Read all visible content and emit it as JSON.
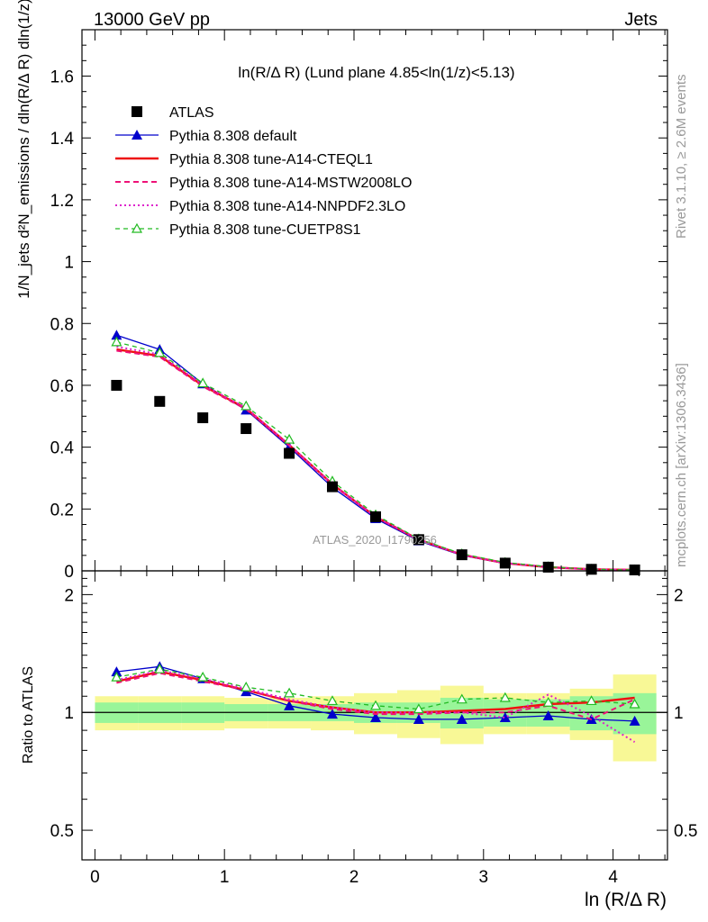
{
  "header": {
    "energy": "13000 GeV pp",
    "process": "Jets"
  },
  "side_text": {
    "rivet": "Rivet 3.1.10, ≥ 2.6M events",
    "mcplots": "mcplots.cern.ch [arXiv:1306.3436]"
  },
  "watermark": "ATLAS_2020_I1790256",
  "colors": {
    "atlas": "#000000",
    "default": "#0000cc",
    "cteql1": "#ee1111",
    "mstw": "#ee1177",
    "nnpdf": "#dd22cc",
    "cuetp8s1": "#22bb22",
    "band_inner": "#99f599",
    "band_outer": "#f8f896"
  },
  "chart_data": [
    {
      "type": "scatter",
      "panel": "main",
      "title": "ln(R/Δ R) (Lund plane 4.85<ln(1/z)<5.13)",
      "ylabel": "1/N_jets d²N_emissions / dln(R/Δ R) dln(1/z)",
      "xlim": [
        -0.1,
        4.42
      ],
      "ylim": [
        0,
        1.75
      ],
      "yticks": [
        0,
        0.2,
        0.4,
        0.6,
        0.8,
        1,
        1.2,
        1.4,
        1.6
      ],
      "x": [
        0.167,
        0.5,
        0.833,
        1.167,
        1.5,
        1.833,
        2.167,
        2.5,
        2.833,
        3.167,
        3.5,
        3.833,
        4.167
      ],
      "legend": {
        "placement": "top-left"
      },
      "series": [
        {
          "name": "ATLAS",
          "key": "atlas",
          "style": "square",
          "values": [
            0.6,
            0.548,
            0.495,
            0.46,
            0.38,
            0.272,
            0.175,
            0.101,
            0.052,
            0.025,
            0.012,
            0.005,
            0.003
          ]
        },
        {
          "name": "Pythia 8.308 default",
          "key": "default",
          "style": "tri-solid",
          "values": [
            0.762,
            0.716,
            0.605,
            0.52,
            0.4,
            0.27,
            0.169,
            0.097,
            0.05,
            0.024,
            0.012,
            0.005,
            0.003
          ]
        },
        {
          "name": "Pythia 8.308 tune-A14-CTEQL1",
          "key": "cteql1",
          "style": "solid",
          "values": [
            0.716,
            0.695,
            0.599,
            0.525,
            0.407,
            0.28,
            0.175,
            0.101,
            0.052,
            0.025,
            0.012,
            0.005,
            0.003
          ]
        },
        {
          "name": "Pythia 8.308 tune-A14-MSTW2008LO",
          "key": "mstw",
          "style": "dashed",
          "values": [
            0.712,
            0.692,
            0.596,
            0.523,
            0.405,
            0.278,
            0.174,
            0.1,
            0.052,
            0.025,
            0.012,
            0.005,
            0.003
          ]
        },
        {
          "name": "Pythia 8.308 tune-A14-NNPDF2.3LO",
          "key": "nnpdf",
          "style": "dotted",
          "values": [
            0.725,
            0.7,
            0.602,
            0.527,
            0.408,
            0.28,
            0.175,
            0.101,
            0.052,
            0.025,
            0.012,
            0.005,
            0.003
          ]
        },
        {
          "name": "Pythia 8.308 tune-CUETP8S1",
          "key": "cuetp8s1",
          "style": "tri-open-dashed",
          "values": [
            0.74,
            0.705,
            0.607,
            0.533,
            0.425,
            0.29,
            0.181,
            0.103,
            0.055,
            0.027,
            0.013,
            0.005,
            0.003
          ]
        }
      ]
    },
    {
      "type": "scatter",
      "panel": "ratio",
      "ylabel": "Ratio to ATLAS",
      "xlabel": "ln (R/Δ R)",
      "xlim": [
        -0.1,
        4.42
      ],
      "ylim": [
        0.42,
        2.3
      ],
      "log_y": true,
      "yticks": [
        0.5,
        1,
        2
      ],
      "xticks": [
        0,
        1,
        2,
        3,
        4
      ],
      "reference": 1,
      "x": [
        0.167,
        0.5,
        0.833,
        1.167,
        1.5,
        1.833,
        2.167,
        2.5,
        2.833,
        3.167,
        3.5,
        3.833,
        4.167
      ],
      "band_inner": [
        0.06,
        0.06,
        0.06,
        0.05,
        0.05,
        0.05,
        0.06,
        0.06,
        0.09,
        0.08,
        0.08,
        0.1,
        0.12
      ],
      "band_outer": [
        0.1,
        0.1,
        0.1,
        0.09,
        0.09,
        0.1,
        0.12,
        0.14,
        0.17,
        0.12,
        0.12,
        0.15,
        0.25
      ],
      "series": [
        {
          "key": "default",
          "style": "tri-solid",
          "values": [
            1.27,
            1.31,
            1.22,
            1.13,
            1.04,
            0.99,
            0.97,
            0.96,
            0.96,
            0.97,
            0.98,
            0.96,
            0.95
          ]
        },
        {
          "key": "cteql1",
          "style": "solid",
          "values": [
            1.2,
            1.27,
            1.21,
            1.14,
            1.07,
            1.03,
            1.0,
            1.0,
            1.01,
            1.02,
            1.05,
            1.06,
            1.09
          ]
        },
        {
          "key": "mstw",
          "style": "dashed",
          "values": [
            1.19,
            1.26,
            1.2,
            1.14,
            1.07,
            1.02,
            0.99,
            0.99,
            1.0,
            1.0,
            1.04,
            0.96,
            1.08
          ]
        },
        {
          "key": "nnpdf",
          "style": "dotted",
          "values": [
            1.21,
            1.28,
            1.22,
            1.15,
            1.08,
            1.03,
            1.0,
            1.0,
            1.0,
            0.97,
            1.11,
            0.98,
            0.84
          ]
        },
        {
          "key": "cuetp8s1",
          "style": "tri-open-dashed",
          "values": [
            1.23,
            1.29,
            1.23,
            1.16,
            1.12,
            1.07,
            1.04,
            1.02,
            1.08,
            1.09,
            1.06,
            1.07,
            1.05
          ]
        }
      ]
    }
  ]
}
